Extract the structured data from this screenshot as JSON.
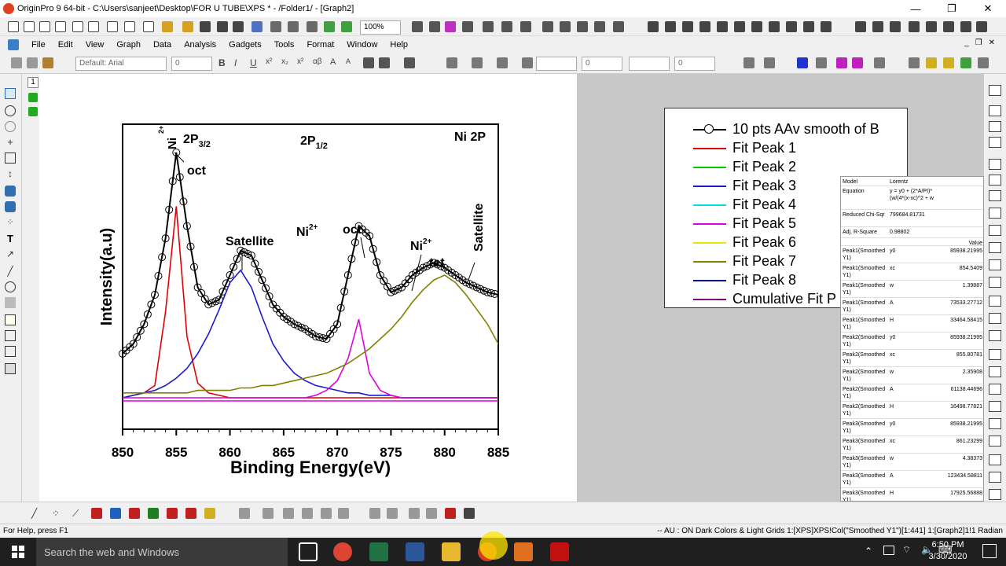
{
  "window": {
    "title": "OriginPro 9 64-bit - C:\\Users\\sanjeet\\Desktop\\FOR U TUBE\\XPS * - /Folder1/ - [Graph2]",
    "minimize": "—",
    "maximize": "❐",
    "close": "✕"
  },
  "menu": [
    "File",
    "Edit",
    "View",
    "Graph",
    "Data",
    "Analysis",
    "Gadgets",
    "Tools",
    "Format",
    "Window",
    "Help"
  ],
  "toolbar": {
    "zoom": "100%",
    "font": "Default: Arial",
    "font_size": "0",
    "line_width": "0",
    "fill": "0"
  },
  "page_number": "1",
  "chart_data": {
    "type": "line",
    "x": [
      850,
      851,
      852,
      853,
      854,
      855,
      856,
      857,
      858,
      859,
      860,
      861,
      862,
      863,
      864,
      865,
      866,
      867,
      868,
      869,
      870,
      871,
      872,
      873,
      874,
      875,
      876,
      877,
      878,
      879,
      880,
      881,
      882,
      883,
      884,
      885
    ],
    "xlabel": "Binding Energy(eV)",
    "ylabel": "Intensity(a.u)",
    "xlim": [
      850,
      885
    ],
    "xticks": [
      "850",
      "855",
      "860",
      "865",
      "870",
      "875",
      "880",
      "885"
    ],
    "series": [
      {
        "name": "10 pts AAv smooth of B",
        "color": "#000000",
        "values": [
          0.18,
          0.22,
          0.3,
          0.42,
          0.65,
          1.0,
          0.7,
          0.45,
          0.38,
          0.4,
          0.5,
          0.6,
          0.58,
          0.48,
          0.38,
          0.33,
          0.3,
          0.28,
          0.25,
          0.24,
          0.3,
          0.5,
          0.7,
          0.66,
          0.5,
          0.43,
          0.45,
          0.5,
          0.53,
          0.55,
          0.53,
          0.5,
          0.47,
          0.45,
          0.43,
          0.42
        ]
      },
      {
        "name": "Fit Peak 1",
        "color": "#e00000",
        "values": [
          0.0,
          0.01,
          0.02,
          0.05,
          0.35,
          0.78,
          0.25,
          0.06,
          0.02,
          0.01,
          0.0,
          0.0,
          0.0,
          0.0,
          0.0,
          0.0,
          0.0,
          0.0,
          0.0,
          0.0,
          0.0,
          0.0,
          0.0,
          0.0,
          0.0,
          0.0,
          0.0,
          0.0,
          0.0,
          0.0,
          0.0,
          0.0,
          0.0,
          0.0,
          0.0,
          0.0
        ]
      },
      {
        "name": "Fit Peak 3",
        "color": "#1a1ad0",
        "values": [
          0.0,
          0.01,
          0.02,
          0.03,
          0.05,
          0.08,
          0.12,
          0.18,
          0.26,
          0.36,
          0.47,
          0.52,
          0.45,
          0.33,
          0.22,
          0.15,
          0.1,
          0.07,
          0.05,
          0.04,
          0.03,
          0.02,
          0.02,
          0.01,
          0.01,
          0.01,
          0.0,
          0.0,
          0.0,
          0.0,
          0.0,
          0.0,
          0.0,
          0.0,
          0.0,
          0.0
        ]
      },
      {
        "name": "Fit Peak 5",
        "color": "#e000e0",
        "values": [
          0.0,
          0.0,
          0.0,
          0.0,
          0.0,
          0.0,
          0.0,
          0.0,
          0.0,
          0.0,
          0.0,
          0.0,
          0.0,
          0.0,
          0.0,
          0.0,
          0.0,
          0.0,
          0.01,
          0.03,
          0.07,
          0.16,
          0.32,
          0.1,
          0.03,
          0.01,
          0.0,
          0.0,
          0.0,
          0.0,
          0.0,
          0.0,
          0.0,
          0.0,
          0.0,
          0.0
        ]
      },
      {
        "name": "Fit Peak 7",
        "color": "#808000",
        "values": [
          0.02,
          0.02,
          0.02,
          0.02,
          0.02,
          0.02,
          0.02,
          0.03,
          0.03,
          0.03,
          0.03,
          0.04,
          0.04,
          0.05,
          0.05,
          0.06,
          0.07,
          0.08,
          0.09,
          0.1,
          0.12,
          0.14,
          0.17,
          0.2,
          0.24,
          0.28,
          0.33,
          0.39,
          0.44,
          0.48,
          0.5,
          0.47,
          0.42,
          0.36,
          0.3,
          0.22
        ]
      }
    ],
    "annotations": [
      "Ni2+",
      "2P3/2",
      "oct",
      "2P1/2",
      "Ni 2P",
      "Satellite",
      "Ni2+",
      "oct",
      "Ni2+",
      "tet",
      "Satellite"
    ]
  },
  "annot": {
    "ni": "Ni",
    "sup2": "2+",
    "p32": "2P",
    "sub32": "3/2",
    "oct1": "oct",
    "p12": "2P",
    "sub12": "1/2",
    "ni2p": "Ni 2P",
    "sat1": "Satellite",
    "ni_mid": "Ni",
    "oct2": "oct",
    "ni_tet": "Ni",
    "tet": "tet",
    "sat2": "Satellite"
  },
  "legend": [
    {
      "label": "10 pts AAv smooth of B",
      "color": "#000000",
      "marker": "circle"
    },
    {
      "label": "Fit Peak 1",
      "color": "#e00000"
    },
    {
      "label": "Fit Peak 2",
      "color": "#00cc00"
    },
    {
      "label": "Fit Peak 3",
      "color": "#1a1ad0"
    },
    {
      "label": "Fit Peak 4",
      "color": "#00e0e0"
    },
    {
      "label": "Fit Peak 5",
      "color": "#e000e0"
    },
    {
      "label": "Fit Peak 6",
      "color": "#e8e800"
    },
    {
      "label": "Fit Peak 7",
      "color": "#808000"
    },
    {
      "label": "Fit Peak 8",
      "color": "#000080"
    },
    {
      "label": "Cumulative Fit P",
      "color": "#800080"
    }
  ],
  "fit_table": {
    "header": [
      [
        "Model",
        "Lorentz",
        ""
      ],
      [
        "Equation",
        "y = y0 + (2*A/PI)*(w/(4*(x-xc)^2 + w",
        ""
      ],
      [
        "Reduced Chi-Sqr",
        "799684.81731",
        ""
      ],
      [
        "Adj. R-Square",
        "0.98802",
        ""
      ],
      [
        "",
        "",
        "Value"
      ]
    ],
    "rows": [
      [
        "Peak1(Smoothed Y1)",
        "y0",
        "85938.21995"
      ],
      [
        "Peak1(Smoothed Y1)",
        "xc",
        "854.5409"
      ],
      [
        "Peak1(Smoothed Y1)",
        "w",
        "1.39887"
      ],
      [
        "Peak1(Smoothed Y1)",
        "A",
        "73533.27712"
      ],
      [
        "Peak1(Smoothed Y1)",
        "H",
        "33464.58415"
      ],
      [
        "Peak2(Smoothed Y1)",
        "y0",
        "85938.21995"
      ],
      [
        "Peak2(Smoothed Y1)",
        "xc",
        "855.80781"
      ],
      [
        "Peak2(Smoothed Y1)",
        "w",
        "2.35908"
      ],
      [
        "Peak2(Smoothed Y1)",
        "A",
        "61138.44696"
      ],
      [
        "Peak2(Smoothed Y1)",
        "H",
        "16498.77821"
      ],
      [
        "Peak3(Smoothed Y1)",
        "y0",
        "85938.21995"
      ],
      [
        "Peak3(Smoothed Y1)",
        "xc",
        "861.23299"
      ],
      [
        "Peak3(Smoothed Y1)",
        "w",
        "4.38373"
      ],
      [
        "Peak3(Smoothed Y1)",
        "A",
        "123434.58811"
      ],
      [
        "Peak3(Smoothed Y1)",
        "H",
        "17925.56888"
      ]
    ]
  },
  "status": {
    "left": "For Help, press F1",
    "right": "-- AU : ON  Dark Colors & Light Grids  1:[XPS]XPS!Col(\"Smoothed Y1\")[1:441]  1:[Graph2]1!1  Radian"
  },
  "taskbar": {
    "search": "Search the web and Windows",
    "time": "6:50 PM",
    "date": "3/30/2020"
  }
}
